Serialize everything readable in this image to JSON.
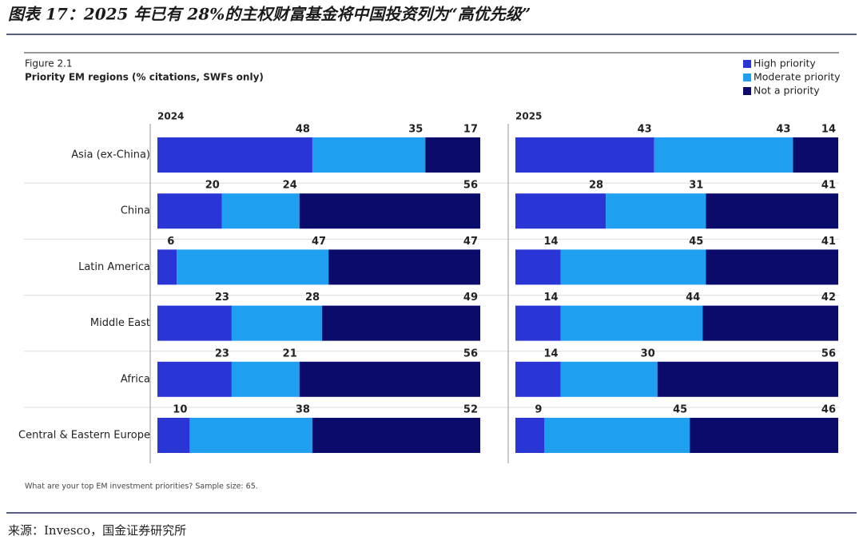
{
  "header": {
    "title": "图表 17：2025 年已有 28%的主权财富基金将中国投资列为“高优先级”"
  },
  "chart_data": {
    "type": "stacked-barh",
    "figure": "Figure 2.1",
    "title": "Priority EM regions (% citations, SWFs only)",
    "note": "What are your top EM investment priorities? Sample size: 65.",
    "categories": [
      "Asia (ex-China)",
      "China",
      "Latin America",
      "Middle East",
      "Africa",
      "Central & Eastern Europe"
    ],
    "legend": [
      {
        "name": "High priority",
        "color": "#2a35d6"
      },
      {
        "name": "Moderate priority",
        "color": "#1e9ff0"
      },
      {
        "name": "Not a priority",
        "color": "#0b0b6b"
      }
    ],
    "xlim": [
      0,
      100
    ],
    "panels": [
      {
        "title": "2024",
        "series": [
          {
            "values": [
              48,
              20,
              6,
              23,
              23,
              10
            ]
          },
          {
            "values": [
              35,
              24,
              47,
              28,
              21,
              38
            ]
          },
          {
            "values": [
              17,
              56,
              47,
              49,
              56,
              52
            ]
          }
        ]
      },
      {
        "title": "2025",
        "series": [
          {
            "values": [
              43,
              28,
              14,
              14,
              14,
              9
            ]
          },
          {
            "values": [
              43,
              31,
              45,
              44,
              30,
              45
            ]
          },
          {
            "values": [
              14,
              41,
              41,
              42,
              56,
              46
            ]
          }
        ]
      }
    ]
  },
  "footer": {
    "source": "来源：Invesco，国金证券研究所"
  }
}
